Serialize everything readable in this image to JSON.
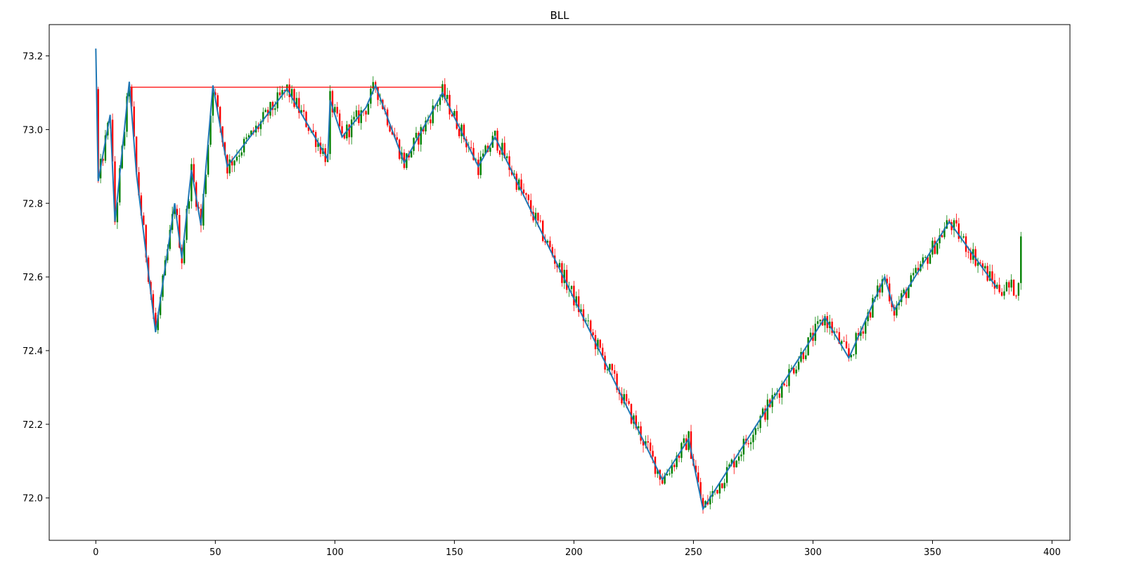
{
  "chart_data": {
    "type": "candlestick",
    "title": "BLL",
    "xlabel": "",
    "ylabel": "",
    "xlim": [
      -19.5,
      407.5
    ],
    "ylim": [
      71.885,
      73.285
    ],
    "xticks": [
      0,
      50,
      100,
      150,
      200,
      250,
      300,
      350,
      400
    ],
    "yticks": [
      72.0,
      72.2,
      72.4,
      72.6,
      72.8,
      73.0,
      73.2
    ],
    "ytick_labels": [
      "72.0",
      "72.2",
      "72.4",
      "72.6",
      "72.8",
      "73.0",
      "73.2"
    ],
    "grid": false,
    "colors": {
      "up": "#008000",
      "down": "#ff0000",
      "zigzag": "#1f77b4",
      "resistance": "#ff0000",
      "axes": "#000000"
    },
    "zigzag": {
      "x": [
        0,
        1,
        6,
        8,
        14,
        17,
        25,
        33,
        36,
        40,
        44,
        49,
        55,
        80,
        97,
        98,
        103,
        113,
        117,
        129,
        145,
        160,
        167,
        237,
        248,
        254,
        305,
        315,
        330,
        334,
        357,
        377
      ],
      "y": [
        73.22,
        72.86,
        73.04,
        72.75,
        73.13,
        72.88,
        72.45,
        72.8,
        72.65,
        72.89,
        72.74,
        73.12,
        72.9,
        73.11,
        72.92,
        73.08,
        72.98,
        73.06,
        73.12,
        72.91,
        73.1,
        72.9,
        72.98,
        72.05,
        72.16,
        71.97,
        72.49,
        72.38,
        72.6,
        72.51,
        72.75,
        72.57
      ]
    },
    "resistance_line": {
      "x_start": 14,
      "x_end": 145,
      "y": 73.115
    }
  }
}
